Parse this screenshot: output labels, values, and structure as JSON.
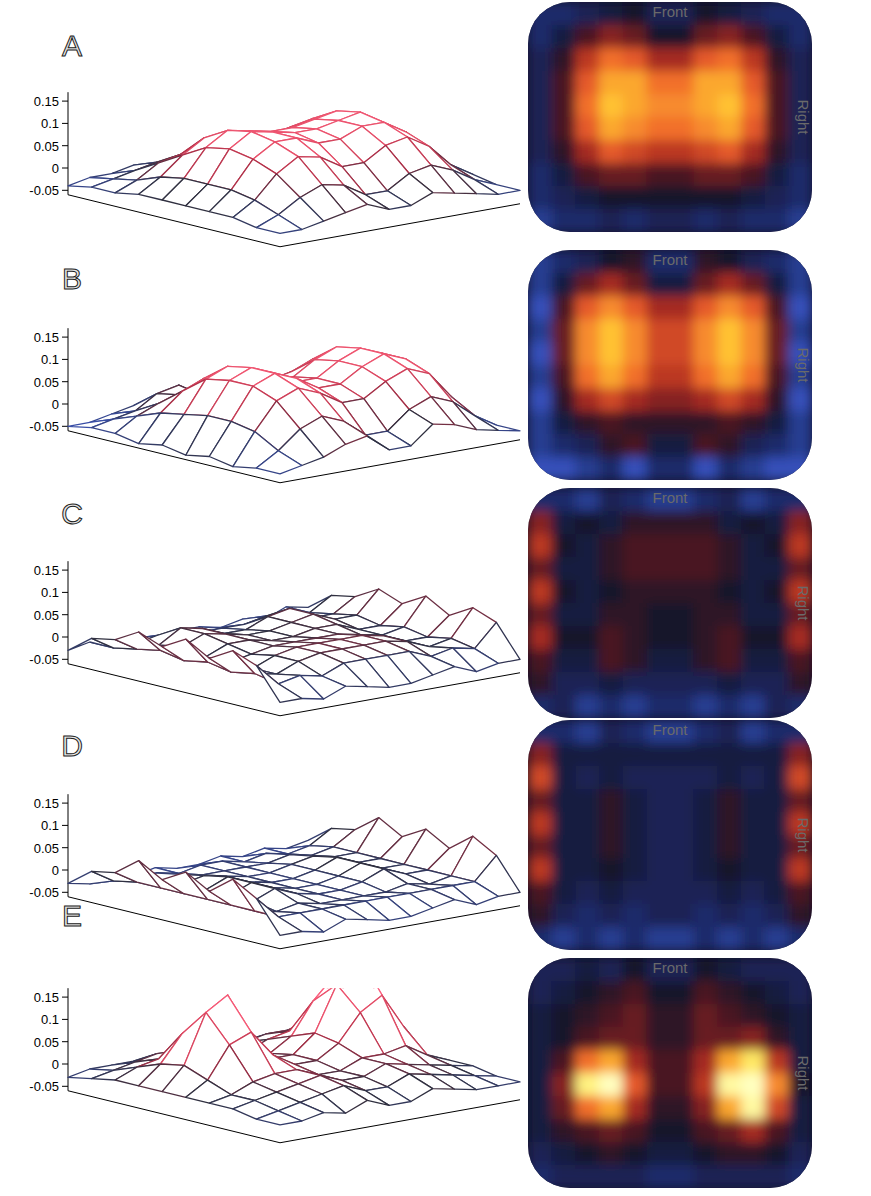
{
  "chart_data": [
    {
      "type": "surface",
      "title": "A",
      "ylim": [
        -0.06,
        0.17
      ],
      "yticks": [
        -0.05,
        0,
        0.05,
        0.1,
        0.15
      ],
      "annotations": [
        "Front",
        "Right"
      ],
      "cells": [
        [
          -0.03,
          -0.03,
          -0.02,
          -0.01,
          0.0,
          -0.02,
          -0.02,
          0.0,
          -0.01,
          -0.02,
          -0.03,
          -0.03
        ],
        [
          -0.03,
          -0.01,
          0.02,
          0.04,
          0.03,
          0.0,
          0.0,
          0.03,
          0.04,
          0.02,
          -0.01,
          -0.03
        ],
        [
          -0.02,
          0.01,
          0.06,
          0.09,
          0.08,
          0.05,
          0.05,
          0.08,
          0.09,
          0.06,
          0.01,
          -0.02
        ],
        [
          -0.02,
          0.02,
          0.08,
          0.11,
          0.11,
          0.09,
          0.09,
          0.11,
          0.11,
          0.08,
          0.02,
          -0.02
        ],
        [
          -0.02,
          0.02,
          0.09,
          0.12,
          0.11,
          0.1,
          0.1,
          0.11,
          0.12,
          0.09,
          0.02,
          -0.02
        ],
        [
          -0.02,
          0.02,
          0.08,
          0.11,
          0.1,
          0.09,
          0.09,
          0.1,
          0.11,
          0.08,
          0.02,
          -0.02
        ],
        [
          -0.02,
          0.01,
          0.05,
          0.08,
          0.07,
          0.06,
          0.06,
          0.07,
          0.08,
          0.05,
          0.01,
          -0.02
        ],
        [
          -0.03,
          -0.01,
          0.02,
          0.03,
          0.03,
          0.02,
          0.02,
          0.03,
          0.03,
          0.02,
          -0.01,
          -0.03
        ],
        [
          -0.03,
          -0.02,
          -0.01,
          0.0,
          0.0,
          0.0,
          0.0,
          0.0,
          0.0,
          -0.01,
          -0.02,
          -0.03
        ],
        [
          -0.04,
          -0.03,
          -0.03,
          -0.02,
          -0.03,
          -0.02,
          -0.02,
          -0.03,
          -0.02,
          -0.03,
          -0.03,
          -0.04
        ]
      ]
    },
    {
      "type": "surface",
      "title": "B",
      "ylim": [
        -0.06,
        0.17
      ],
      "yticks": [
        -0.05,
        0,
        0.05,
        0.1,
        0.15
      ],
      "annotations": [
        "Front",
        "Right"
      ],
      "cells": [
        [
          -0.04,
          -0.03,
          -0.02,
          0.0,
          0.01,
          -0.03,
          -0.03,
          0.01,
          0.0,
          -0.02,
          -0.03,
          -0.04
        ],
        [
          -0.04,
          -0.01,
          0.03,
          0.05,
          0.03,
          -0.01,
          -0.01,
          0.03,
          0.05,
          0.03,
          -0.01,
          -0.04
        ],
        [
          -0.05,
          0.02,
          0.08,
          0.1,
          0.08,
          0.05,
          0.05,
          0.08,
          0.1,
          0.08,
          0.02,
          -0.05
        ],
        [
          -0.04,
          0.03,
          0.1,
          0.12,
          0.1,
          0.07,
          0.07,
          0.1,
          0.12,
          0.1,
          0.03,
          -0.04
        ],
        [
          -0.05,
          0.03,
          0.1,
          0.12,
          0.1,
          0.07,
          0.07,
          0.1,
          0.12,
          0.1,
          0.03,
          -0.05
        ],
        [
          -0.04,
          0.02,
          0.09,
          0.11,
          0.09,
          0.06,
          0.06,
          0.09,
          0.11,
          0.09,
          0.02,
          -0.04
        ],
        [
          -0.05,
          0.01,
          0.05,
          0.07,
          0.05,
          0.04,
          0.04,
          0.05,
          0.07,
          0.05,
          0.01,
          -0.05
        ],
        [
          -0.04,
          -0.01,
          0.01,
          0.02,
          0.01,
          0.01,
          0.01,
          0.01,
          0.02,
          0.01,
          -0.01,
          -0.04
        ],
        [
          -0.04,
          -0.03,
          -0.02,
          0.01,
          0.02,
          -0.01,
          -0.01,
          0.02,
          0.01,
          -0.02,
          -0.03,
          -0.04
        ],
        [
          -0.05,
          -0.05,
          -0.04,
          -0.03,
          -0.05,
          -0.03,
          -0.03,
          -0.05,
          -0.03,
          -0.04,
          -0.05,
          -0.05
        ]
      ]
    },
    {
      "type": "surface",
      "title": "C",
      "ylim": [
        -0.06,
        0.17
      ],
      "yticks": [
        -0.05,
        0,
        0.05,
        0.1,
        0.15
      ],
      "annotations": [
        "Front",
        "Right"
      ],
      "cells": [
        [
          -0.03,
          -0.03,
          -0.04,
          -0.02,
          -0.03,
          -0.04,
          -0.04,
          -0.03,
          -0.02,
          -0.04,
          -0.03,
          -0.03
        ],
        [
          0.04,
          -0.01,
          0.0,
          -0.01,
          0.01,
          0.01,
          0.01,
          0.01,
          -0.01,
          0.0,
          -0.01,
          0.04
        ],
        [
          0.06,
          0.0,
          -0.01,
          0.01,
          0.02,
          0.02,
          0.02,
          0.02,
          0.01,
          -0.01,
          0.0,
          0.06
        ],
        [
          0.03,
          -0.01,
          -0.01,
          0.01,
          0.02,
          0.02,
          0.02,
          0.02,
          0.01,
          -0.01,
          -0.01,
          0.03
        ],
        [
          0.06,
          0.0,
          -0.01,
          0.0,
          0.01,
          0.01,
          0.01,
          0.01,
          0.0,
          -0.01,
          0.0,
          0.06
        ],
        [
          0.03,
          -0.01,
          -0.01,
          0.01,
          0.01,
          0.0,
          0.0,
          0.01,
          0.01,
          -0.01,
          -0.01,
          0.03
        ],
        [
          0.05,
          0.0,
          0.0,
          0.02,
          0.01,
          0.0,
          0.0,
          0.01,
          0.02,
          0.0,
          0.0,
          0.05
        ],
        [
          0.02,
          -0.01,
          -0.01,
          0.02,
          0.01,
          -0.01,
          -0.01,
          0.01,
          0.02,
          -0.01,
          -0.01,
          0.02
        ],
        [
          0.01,
          -0.02,
          -0.02,
          -0.01,
          -0.02,
          -0.02,
          -0.02,
          -0.02,
          -0.01,
          -0.02,
          -0.02,
          0.01
        ],
        [
          -0.03,
          -0.02,
          -0.04,
          -0.03,
          -0.04,
          -0.03,
          -0.03,
          -0.04,
          -0.03,
          -0.04,
          -0.02,
          -0.03
        ]
      ]
    },
    {
      "type": "surface",
      "title": "D",
      "ylim": [
        -0.06,
        0.17
      ],
      "yticks": [
        -0.05,
        0,
        0.05,
        0.1,
        0.15
      ],
      "annotations": [
        "Front",
        "Right"
      ],
      "cells": [
        [
          -0.03,
          -0.03,
          -0.04,
          -0.02,
          -0.03,
          -0.04,
          -0.04,
          -0.03,
          -0.02,
          -0.04,
          -0.03,
          -0.03
        ],
        [
          0.04,
          -0.01,
          -0.01,
          -0.01,
          -0.01,
          -0.01,
          -0.01,
          -0.01,
          -0.01,
          -0.01,
          -0.01,
          0.04
        ],
        [
          0.07,
          -0.01,
          -0.02,
          -0.01,
          -0.02,
          -0.02,
          -0.02,
          -0.02,
          -0.01,
          -0.02,
          -0.01,
          0.07
        ],
        [
          0.03,
          -0.01,
          -0.01,
          0.01,
          -0.01,
          -0.02,
          -0.02,
          -0.01,
          0.01,
          -0.01,
          -0.01,
          0.03
        ],
        [
          0.06,
          -0.01,
          -0.01,
          0.01,
          -0.01,
          -0.02,
          -0.02,
          -0.01,
          0.01,
          -0.01,
          -0.01,
          0.06
        ],
        [
          0.03,
          -0.01,
          -0.01,
          0.01,
          -0.01,
          -0.02,
          -0.02,
          -0.01,
          0.01,
          -0.01,
          -0.01,
          0.03
        ],
        [
          0.06,
          -0.01,
          -0.01,
          0.0,
          -0.01,
          -0.02,
          -0.02,
          -0.01,
          0.0,
          -0.01,
          -0.01,
          0.06
        ],
        [
          0.02,
          -0.01,
          -0.02,
          -0.01,
          -0.02,
          -0.02,
          -0.02,
          -0.02,
          -0.01,
          -0.02,
          -0.01,
          0.02
        ],
        [
          0.01,
          -0.02,
          -0.03,
          -0.02,
          -0.03,
          -0.02,
          -0.02,
          -0.03,
          -0.02,
          -0.03,
          -0.02,
          0.01
        ],
        [
          -0.03,
          -0.04,
          -0.03,
          -0.04,
          -0.03,
          -0.04,
          -0.04,
          -0.03,
          -0.04,
          -0.03,
          -0.04,
          -0.03
        ]
      ]
    },
    {
      "type": "surface",
      "title": "E",
      "ylim": [
        -0.06,
        0.17
      ],
      "yticks": [
        -0.05,
        0,
        0.05,
        0.1,
        0.15
      ],
      "annotations": [
        "Front",
        "Right"
      ],
      "cells": [
        [
          -0.02,
          -0.02,
          -0.01,
          -0.02,
          0.0,
          -0.02,
          -0.02,
          0.0,
          -0.01,
          -0.02,
          -0.02,
          -0.02
        ],
        [
          -0.02,
          -0.01,
          0.0,
          0.01,
          0.02,
          0.0,
          0.0,
          0.02,
          0.01,
          0.0,
          -0.01,
          -0.02
        ],
        [
          -0.01,
          0.0,
          0.01,
          0.02,
          0.03,
          0.01,
          0.01,
          0.03,
          0.02,
          0.01,
          0.0,
          -0.01
        ],
        [
          -0.01,
          0.0,
          0.02,
          0.03,
          0.03,
          0.01,
          0.01,
          0.03,
          0.03,
          0.04,
          0.01,
          -0.01
        ],
        [
          -0.01,
          0.02,
          0.09,
          0.11,
          0.05,
          0.02,
          0.02,
          0.05,
          0.11,
          0.14,
          0.06,
          -0.01
        ],
        [
          -0.01,
          0.04,
          0.15,
          0.18,
          0.08,
          0.02,
          0.02,
          0.06,
          0.16,
          0.22,
          0.1,
          0.0
        ],
        [
          -0.01,
          0.03,
          0.09,
          0.11,
          0.05,
          0.01,
          0.01,
          0.04,
          0.11,
          0.16,
          0.07,
          -0.01
        ],
        [
          -0.01,
          0.01,
          0.02,
          0.03,
          0.02,
          0.0,
          0.0,
          0.02,
          0.03,
          0.05,
          0.02,
          -0.01
        ],
        [
          -0.02,
          -0.01,
          0.0,
          0.01,
          0.0,
          -0.01,
          -0.01,
          0.0,
          0.01,
          0.01,
          0.0,
          -0.02
        ],
        [
          -0.03,
          -0.02,
          -0.02,
          -0.02,
          -0.02,
          -0.03,
          -0.03,
          -0.02,
          -0.02,
          -0.02,
          -0.02,
          -0.03
        ]
      ]
    }
  ]
}
